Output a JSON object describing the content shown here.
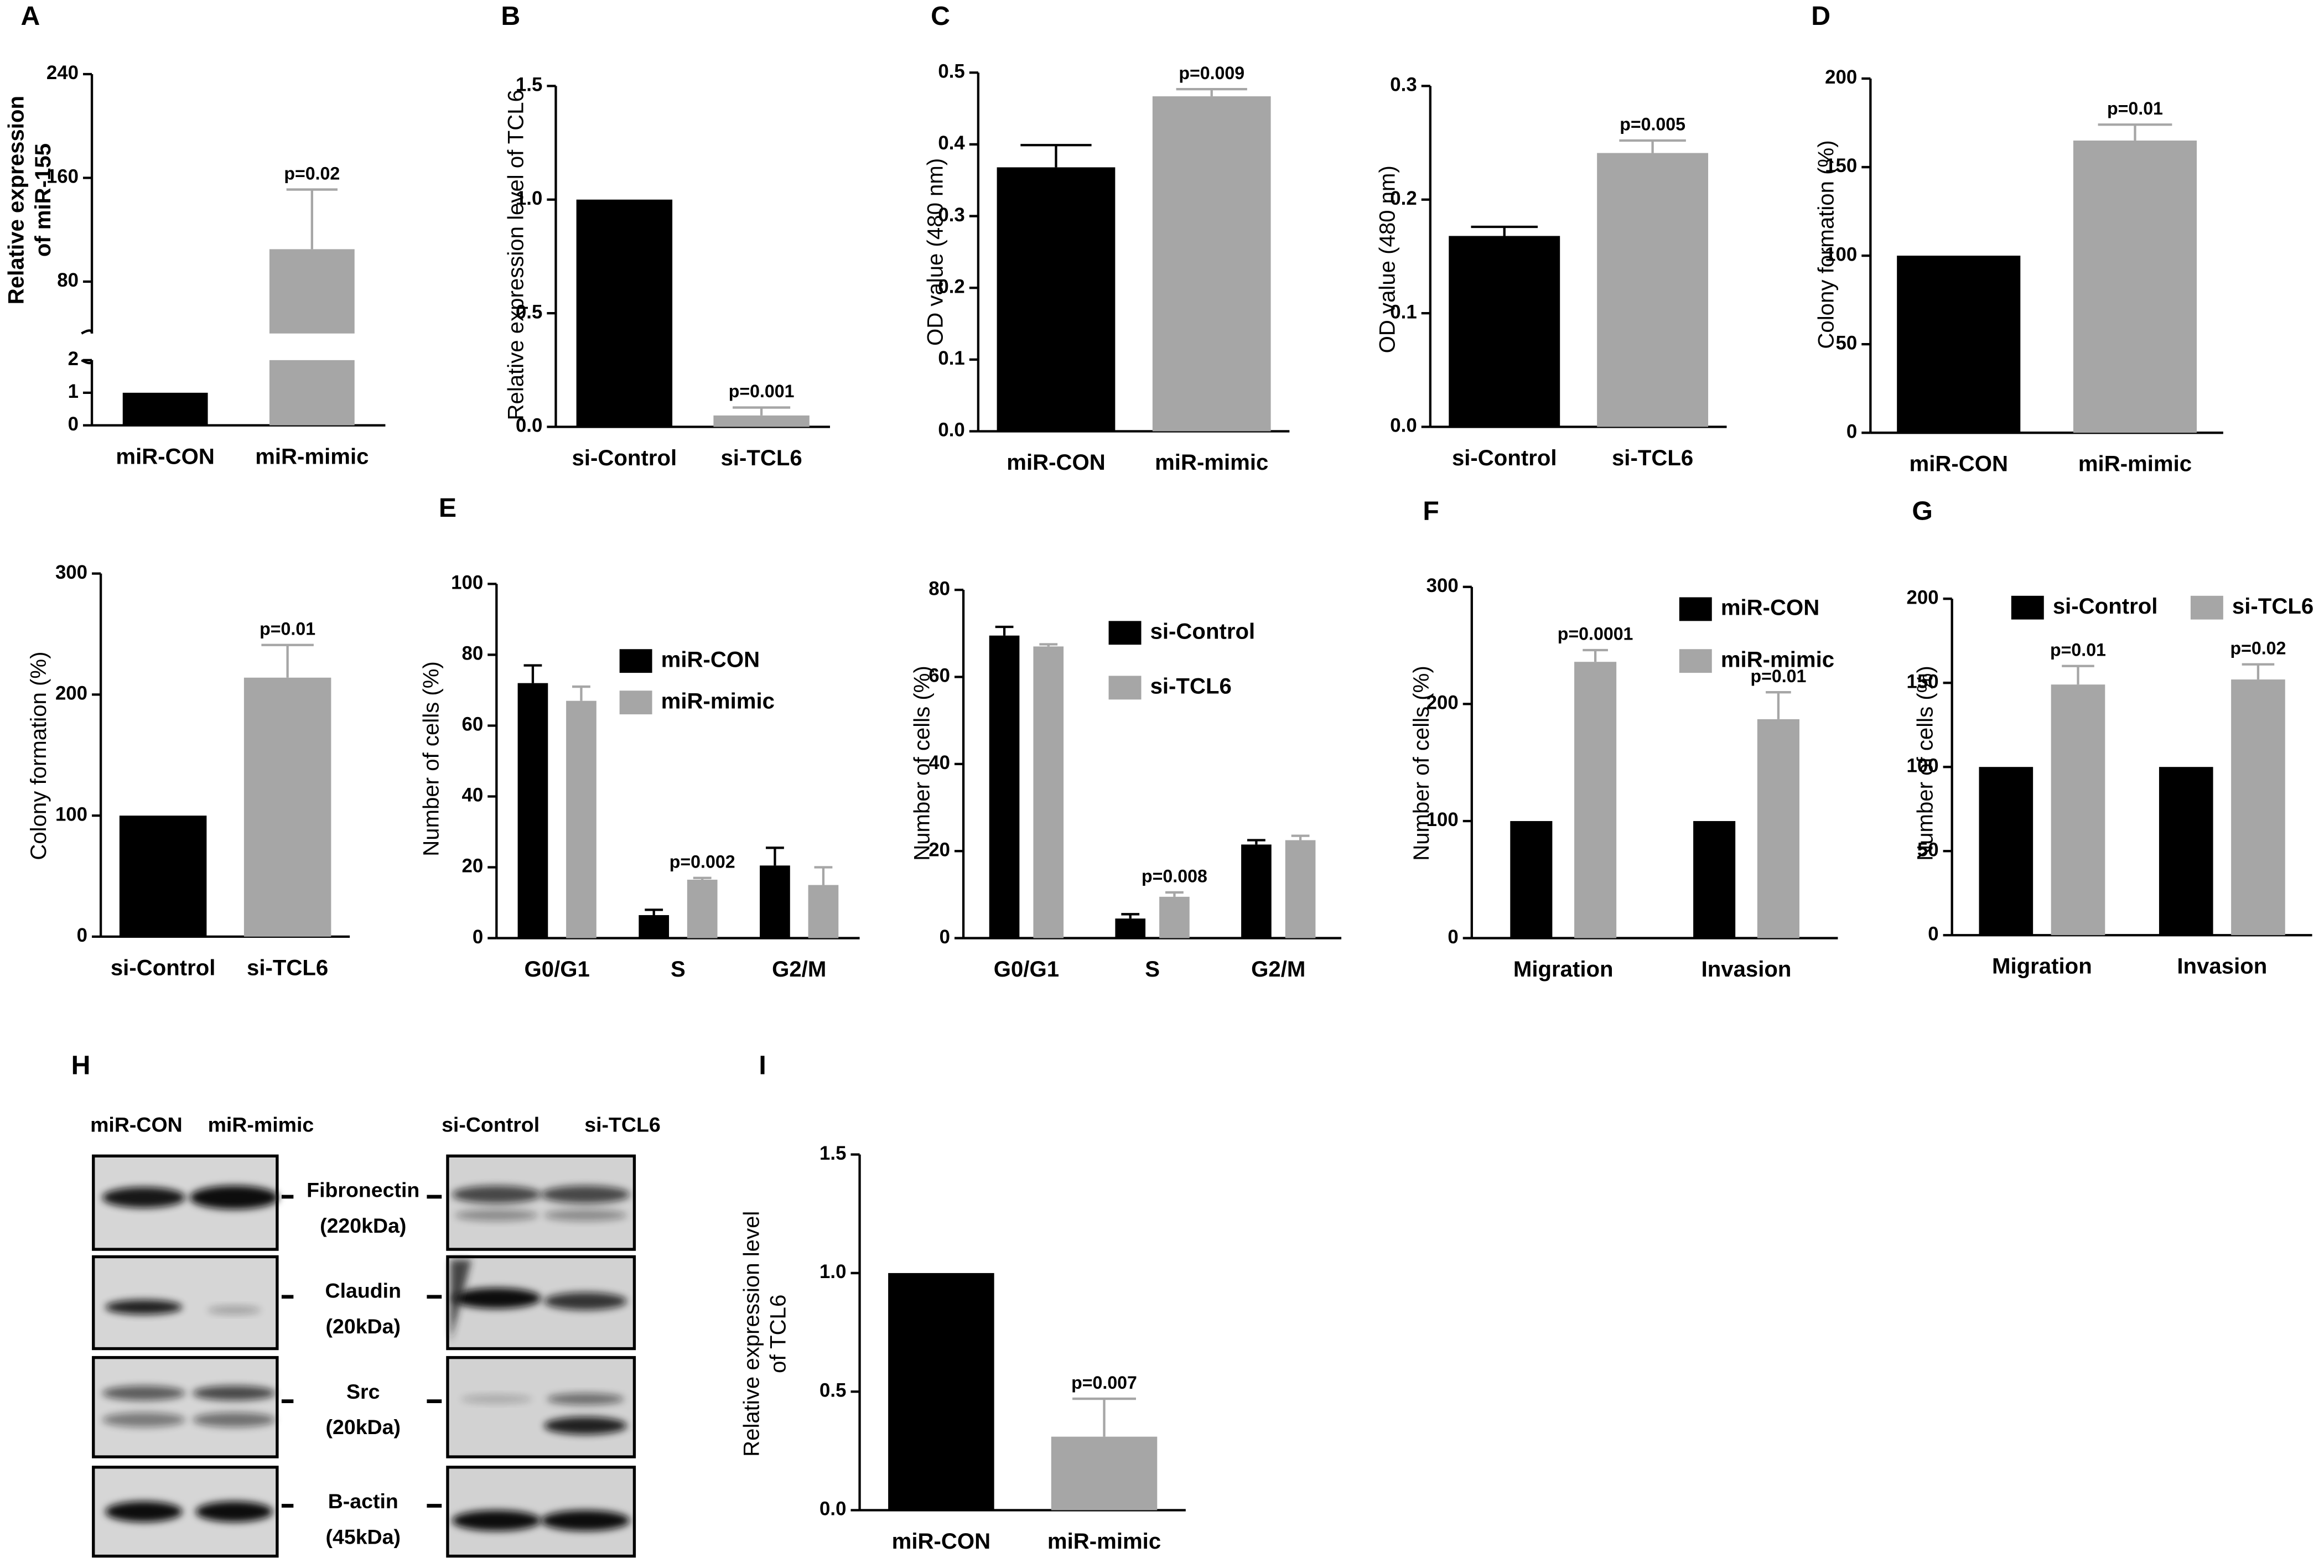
{
  "chart_data": [
    {
      "type": "bar",
      "panel": "A",
      "ylabel": [
        "Relative expression",
        "of miR-155"
      ],
      "categories": [
        "miR-CON",
        "miR-mimic"
      ],
      "colors": [
        "#000000",
        "#a6a6a6"
      ],
      "values": [
        1,
        105
      ],
      "errors": [
        null,
        46
      ],
      "annotations": [
        null,
        "p=0.02"
      ],
      "ylim": [
        0,
        240
      ],
      "ybreak": [
        2,
        40
      ],
      "yticks": [
        0,
        1,
        2,
        80,
        160,
        240
      ]
    },
    {
      "type": "bar",
      "panel": "B",
      "ylabel": "Relative expression level of TCL6",
      "categories": [
        "si-Control",
        "si-TCL6"
      ],
      "colors": [
        "#000000",
        "#a6a6a6"
      ],
      "values": [
        1.0,
        0.05
      ],
      "errors": [
        null,
        0.035
      ],
      "annotations": [
        null,
        "p=0.001"
      ],
      "ylim": [
        0,
        1.5
      ],
      "yticks": [
        {
          "value": 0,
          "label": "0.0"
        },
        0.5,
        {
          "value": 1,
          "label": "1.0"
        },
        1.5
      ]
    },
    {
      "type": "bar",
      "panel": "C",
      "ylabel": "OD value (480 nm)",
      "categories": [
        "miR-CON",
        "miR-mimic"
      ],
      "colors": [
        "#000000",
        "#a6a6a6"
      ],
      "values": [
        0.368,
        0.467
      ],
      "errors": [
        0.031,
        0.01
      ],
      "annotations": [
        null,
        "p=0.009"
      ],
      "ylim": [
        0,
        0.5
      ],
      "yticks": [
        {
          "value": 0,
          "label": "0.0"
        },
        0.1,
        0.2,
        0.3,
        0.4,
        0.5
      ]
    },
    {
      "type": "bar",
      "ylabel": "OD value (480 nm)",
      "categories": [
        "si-Control",
        "si-TCL6"
      ],
      "colors": [
        "#000000",
        "#a6a6a6"
      ],
      "values": [
        0.168,
        0.241
      ],
      "errors": [
        0.008,
        0.011
      ],
      "annotations": [
        null,
        "p=0.005"
      ],
      "ylim": [
        0,
        0.3
      ],
      "yticks": [
        {
          "value": 0,
          "label": "0.0"
        },
        0.1,
        0.2,
        0.3
      ]
    },
    {
      "type": "bar",
      "panel": "D",
      "ylabel": "Colony formation (%)",
      "categories": [
        "miR-CON",
        "miR-mimic"
      ],
      "colors": [
        "#000000",
        "#a6a6a6"
      ],
      "values": [
        100,
        165
      ],
      "errors": [
        null,
        9
      ],
      "annotations": [
        null,
        "p=0.01"
      ],
      "ylim": [
        0,
        200
      ],
      "yticks": [
        0,
        50,
        100,
        150,
        200
      ]
    },
    {
      "type": "bar",
      "ylabel": "Colony formation (%)",
      "categories": [
        "si-Control",
        "si-TCL6"
      ],
      "colors": [
        "#000000",
        "#a6a6a6"
      ],
      "values": [
        100,
        214
      ],
      "errors": [
        null,
        27
      ],
      "annotations": [
        null,
        "p=0.01"
      ],
      "ylim": [
        0,
        300
      ],
      "yticks": [
        0,
        100,
        200,
        300
      ]
    },
    {
      "type": "grouped_bar",
      "panel": "E",
      "ylabel": "Number of cells (%)",
      "categories": [
        "G0/G1",
        "S",
        "G2/M"
      ],
      "series": [
        {
          "name": "miR-CON",
          "color": "#000000",
          "values": [
            72,
            6.5,
            20.5
          ],
          "errors": [
            5,
            1.5,
            5
          ],
          "annotations": [
            null,
            null,
            null
          ]
        },
        {
          "name": "miR-mimic",
          "color": "#a6a6a6",
          "values": [
            67,
            16.5,
            15
          ],
          "errors": [
            4,
            0.5,
            5
          ],
          "annotations": [
            null,
            "p=0.002",
            null
          ]
        }
      ],
      "ylim": [
        0,
        100
      ],
      "yticks": [
        0,
        20,
        40,
        60,
        80,
        100
      ]
    },
    {
      "type": "grouped_bar",
      "ylabel": "Number of cells (%)",
      "categories": [
        "G0/G1",
        "S",
        "G2/M"
      ],
      "series": [
        {
          "name": "si-Control",
          "color": "#000000",
          "values": [
            69.5,
            4.5,
            21.5
          ],
          "errors": [
            2,
            1,
            1
          ],
          "annotations": [
            null,
            null,
            null
          ]
        },
        {
          "name": "si-TCL6",
          "color": "#a6a6a6",
          "values": [
            67,
            9.5,
            22.5
          ],
          "errors": [
            0.5,
            1,
            1
          ],
          "annotations": [
            null,
            "p=0.008",
            null
          ]
        }
      ],
      "ylim": [
        0,
        80
      ],
      "yticks": [
        0,
        20,
        40,
        60,
        80
      ]
    },
    {
      "type": "grouped_bar",
      "panel": "F",
      "ylabel": "Number of cells (%)",
      "categories": [
        "Migration",
        "Invasion"
      ],
      "series": [
        {
          "name": "miR-CON",
          "color": "#000000",
          "values": [
            100,
            100
          ],
          "errors": [
            null,
            null
          ],
          "annotations": [
            null,
            null
          ]
        },
        {
          "name": "miR-mimic",
          "color": "#a6a6a6",
          "values": [
            236,
            187
          ],
          "errors": [
            10,
            23
          ],
          "annotations": [
            "p=0.0001",
            "p=0.01"
          ]
        }
      ],
      "ylim": [
        0,
        300
      ],
      "yticks": [
        0,
        100,
        200,
        300
      ]
    },
    {
      "type": "grouped_bar",
      "panel": "G",
      "ylabel": "Number of cells (%)",
      "categories": [
        "Migration",
        "Invasion"
      ],
      "series": [
        {
          "name": "si-Control",
          "color": "#000000",
          "values": [
            100,
            100
          ],
          "errors": [
            null,
            null
          ],
          "annotations": [
            null,
            null
          ]
        },
        {
          "name": "si-TCL6",
          "color": "#a6a6a6",
          "values": [
            149,
            152
          ],
          "errors": [
            11,
            9
          ],
          "annotations": [
            "p=0.01",
            "p=0.02"
          ]
        }
      ],
      "ylim": [
        0,
        200
      ],
      "yticks": [
        0,
        50,
        100,
        150,
        200
      ]
    },
    {
      "type": "bar",
      "panel": "I",
      "ylabel": [
        "Relative expression level",
        "of TCL6"
      ],
      "categories": [
        "miR-CON",
        "miR-mimic"
      ],
      "colors": [
        "#000000",
        "#a6a6a6"
      ],
      "values": [
        1.0,
        0.31
      ],
      "errors": [
        null,
        0.16
      ],
      "annotations": [
        null,
        "p=0.007"
      ],
      "ylim": [
        0,
        1.5
      ],
      "yticks": [
        {
          "value": 0,
          "label": "0.0"
        },
        0.5,
        {
          "value": 1,
          "label": "1.0"
        },
        1.5
      ]
    }
  ],
  "blot": {
    "panel": "H",
    "lanes_left": [
      "miR-CON",
      "miR-mimic"
    ],
    "lanes_right": [
      "si-Control",
      "si-TCL6"
    ],
    "proteins": [
      {
        "name": "Fibronectin",
        "size": "(220kDa)"
      },
      {
        "name": "Claudin",
        "size": "(20kDa)"
      },
      {
        "name": "Src",
        "size": "(20kDa)"
      },
      {
        "name": "B-actin",
        "size": "(45kDa)"
      }
    ]
  }
}
